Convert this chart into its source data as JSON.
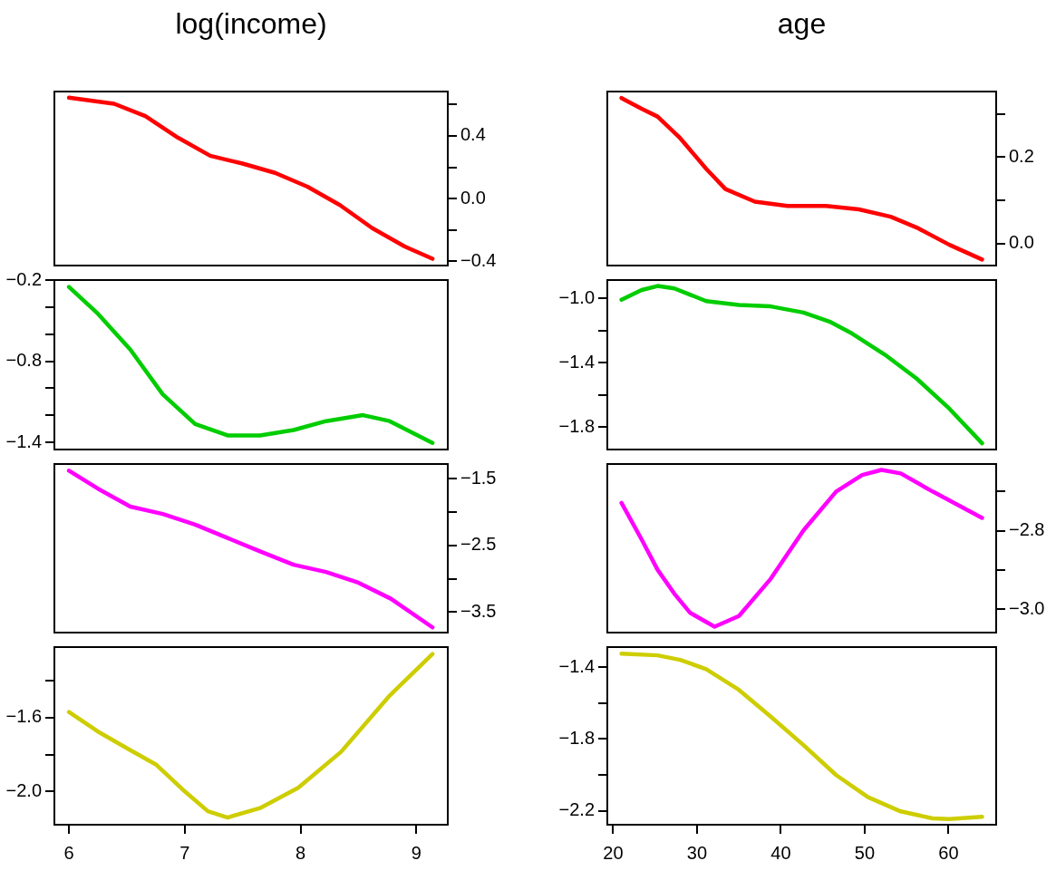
{
  "chart_data": [
    {
      "type": "line",
      "title": "log(income)",
      "x": [
        6.0,
        6.39,
        6.66,
        6.94,
        7.22,
        7.5,
        7.78,
        8.06,
        8.34,
        8.62,
        8.9,
        9.14
      ],
      "series": [
        {
          "color": "#ff0000",
          "values": [
            0.643,
            0.604,
            0.525,
            0.389,
            0.273,
            0.223,
            0.164,
            0.076,
            -0.041,
            -0.188,
            -0.305,
            -0.383
          ]
        }
      ],
      "xlim": [
        5.874,
        9.272
      ],
      "ylim": [
        -0.426,
        0.682
      ],
      "yticks": [
        {
          "value": 0.6,
          "label": null
        },
        0.4,
        {
          "value": 0.2,
          "label": null
        },
        {
          "value": 0,
          "label": "0.0"
        },
        {
          "value": -0.2,
          "label": null
        },
        {
          "value": -0.4,
          "label": "−0.4"
        }
      ],
      "tick_labels": "y",
      "legend": false
    },
    {
      "type": "line",
      "title": "age",
      "x": [
        21,
        23.4,
        25.3,
        28.0,
        31.1,
        33.4,
        36.9,
        40.8,
        45.4,
        49.3,
        53.1,
        56.2,
        60.1,
        64.0
      ],
      "series": [
        {
          "color": "#ff0000",
          "values": [
            0.337,
            0.312,
            0.294,
            0.244,
            0.173,
            0.126,
            0.097,
            0.087,
            0.087,
            0.079,
            0.062,
            0.037,
            -0.003,
            -0.037
          ]
        }
      ],
      "xlim": [
        19.31,
        65.68
      ],
      "ylim": [
        -0.051,
        0.352
      ],
      "yticks": [
        {
          "value": 0.3,
          "label": null
        },
        0.2,
        {
          "value": 0.1,
          "label": null
        },
        {
          "value": 0,
          "label": "0.0"
        }
      ],
      "tick_labels": "y",
      "legend": false
    },
    {
      "type": "line",
      "x": [
        6.0,
        6.25,
        6.53,
        6.81,
        7.09,
        7.37,
        7.65,
        7.94,
        8.22,
        8.54,
        8.77,
        9.14
      ],
      "series": [
        {
          "color": "#00cd00",
          "values": [
            -0.251,
            -0.449,
            -0.714,
            -1.045,
            -1.265,
            -1.349,
            -1.349,
            -1.309,
            -1.243,
            -1.199,
            -1.243,
            -1.404
          ]
        }
      ],
      "xlim": [
        5.874,
        9.272
      ],
      "ylim": [
        -1.453,
        -0.2
      ],
      "yticks": [
        {
          "value": -0.2,
          "label": "−0.2"
        },
        {
          "value": -0.4,
          "label": null
        },
        {
          "value": -0.6,
          "label": null
        },
        {
          "value": -0.8,
          "label": "−0.8"
        },
        {
          "value": -1.0,
          "label": null
        },
        {
          "value": -1.2,
          "label": null
        },
        {
          "value": -1.4,
          "label": "−1.4"
        }
      ],
      "tick_labels": "y",
      "legend": false
    },
    {
      "type": "line",
      "x": [
        21,
        23.4,
        25.3,
        27.3,
        31.1,
        35.0,
        38.8,
        42.7,
        45.8,
        48.5,
        52.4,
        56.2,
        60.1,
        64.0
      ],
      "series": [
        {
          "color": "#00cd00",
          "values": [
            -1.009,
            -0.948,
            -0.923,
            -0.938,
            -1.017,
            -1.041,
            -1.05,
            -1.088,
            -1.144,
            -1.219,
            -1.35,
            -1.499,
            -1.686,
            -1.901
          ]
        }
      ],
      "xlim": [
        19.31,
        65.68
      ],
      "ylim": [
        -1.94,
        -0.886
      ],
      "yticks": [
        {
          "value": -1.0,
          "label": "−1.0"
        },
        {
          "value": -1.2,
          "label": null
        },
        {
          "value": -1.4,
          "label": "−1.4"
        },
        {
          "value": -1.6,
          "label": null
        },
        {
          "value": -1.8,
          "label": "−1.8"
        }
      ],
      "tick_labels": "y",
      "legend": false
    },
    {
      "type": "line",
      "x": [
        6.0,
        6.25,
        6.53,
        6.81,
        7.09,
        7.37,
        7.65,
        7.94,
        8.22,
        8.5,
        8.78,
        9.14
      ],
      "series": [
        {
          "color": "#ff00ff",
          "values": [
            -1.38,
            -1.65,
            -1.92,
            -2.03,
            -2.19,
            -2.39,
            -2.59,
            -2.79,
            -2.9,
            -3.06,
            -3.3,
            -3.73
          ]
        }
      ],
      "xlim": [
        5.874,
        9.272
      ],
      "ylim": [
        -3.808,
        -1.281
      ],
      "yticks": [
        {
          "value": -1.5,
          "label": "−1.5"
        },
        {
          "value": -2.0,
          "label": null
        },
        {
          "value": -2.5,
          "label": "−2.5"
        },
        {
          "value": -3.0,
          "label": null
        },
        {
          "value": -3.5,
          "label": "−3.5"
        }
      ],
      "tick_labels": "y",
      "legend": false
    },
    {
      "type": "line",
      "x": [
        21,
        23.4,
        25.3,
        27.3,
        29.2,
        32.1,
        35.0,
        38.8,
        42.7,
        46.6,
        49.7,
        52.0,
        54.3,
        58.1,
        64.0
      ],
      "series": [
        {
          "color": "#ff00ff",
          "values": [
            -2.729,
            -2.822,
            -2.899,
            -2.96,
            -3.009,
            -3.044,
            -3.017,
            -2.922,
            -2.799,
            -2.7,
            -2.658,
            -2.645,
            -2.654,
            -2.7,
            -2.767
          ]
        }
      ],
      "xlim": [
        19.31,
        65.68
      ],
      "ylim": [
        -3.059,
        -2.63
      ],
      "yticks": [
        {
          "value": -2.7,
          "label": null
        },
        {
          "value": -2.8,
          "label": "−2.8"
        },
        {
          "value": -2.9,
          "label": null
        },
        {
          "value": -3.0,
          "label": "−3.0"
        }
      ],
      "tick_labels": "y",
      "legend": false
    },
    {
      "type": "line",
      "x": [
        6.0,
        6.25,
        6.53,
        6.75,
        6.98,
        7.2,
        7.37,
        7.65,
        7.98,
        8.35,
        8.77,
        9.14
      ],
      "series": [
        {
          "color": "#cdcd00",
          "values": [
            -1.569,
            -1.675,
            -1.776,
            -1.853,
            -1.988,
            -2.107,
            -2.141,
            -2.09,
            -1.98,
            -1.785,
            -1.48,
            -1.254
          ]
        }
      ],
      "xlim": [
        5.874,
        9.272
      ],
      "ylim": [
        -2.18,
        -1.217
      ],
      "xticks": [
        6,
        7,
        8,
        9
      ],
      "yticks": [
        {
          "value": -1.4,
          "label": null
        },
        {
          "value": -1.6,
          "label": "−1.6"
        },
        {
          "value": -1.8,
          "label": null
        },
        {
          "value": -2.0,
          "label": "−2.0"
        }
      ],
      "legend": false
    },
    {
      "type": "line",
      "x": [
        21,
        25.3,
        28.0,
        31.1,
        35.0,
        38.8,
        42.7,
        46.6,
        50.4,
        54.3,
        58.1,
        60.1,
        64.0
      ],
      "series": [
        {
          "color": "#cdcd00",
          "values": [
            -1.326,
            -1.335,
            -1.36,
            -1.412,
            -1.527,
            -1.676,
            -1.834,
            -2.001,
            -2.124,
            -2.203,
            -2.242,
            -2.245,
            -2.233
          ]
        }
      ],
      "xlim": [
        19.31,
        65.68
      ],
      "ylim": [
        -2.277,
        -1.289
      ],
      "xticks": [
        20,
        30,
        40,
        50,
        60
      ],
      "yticks": [
        {
          "value": -1.4,
          "label": "−1.4"
        },
        {
          "value": -1.6,
          "label": null
        },
        {
          "value": -1.8,
          "label": "−1.8"
        },
        {
          "value": -2.0,
          "label": null
        },
        {
          "value": -2.2,
          "label": "−2.2"
        }
      ],
      "legend": false
    }
  ]
}
